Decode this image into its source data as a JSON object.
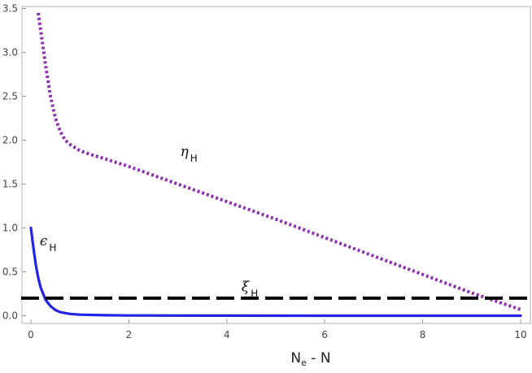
{
  "chart_data": {
    "type": "line",
    "xlabel": "Ne - N",
    "xlabel_main": "N",
    "xlabel_sub": "e",
    "xlabel_rest": " - N",
    "xlim": [
      0,
      10
    ],
    "ylim": [
      0,
      3.5
    ],
    "xticks": [
      0,
      2,
      4,
      6,
      8,
      10
    ],
    "yticks": [
      0.0,
      0.5,
      1.0,
      1.5,
      2.0,
      2.5,
      3.0,
      3.5
    ],
    "ytick_labels": [
      "0.0",
      "0.5",
      "1.0",
      "1.5",
      "2.0",
      "2.5",
      "3.0",
      "3.5"
    ],
    "xtick_labels": [
      "0",
      "2",
      "4",
      "6",
      "8",
      "10"
    ],
    "grid": false,
    "series": [
      {
        "name": "ηH",
        "label_main": "η",
        "label_sub": "H",
        "color": "#8e2fb0",
        "style": "dotted",
        "x": [
          0.15,
          0.2,
          0.3,
          0.4,
          0.5,
          0.6,
          0.7,
          0.8,
          1.0,
          1.2,
          1.5,
          2.0,
          3.0,
          4.0,
          5.0,
          6.0,
          7.0,
          8.0,
          9.0,
          10.0
        ],
        "y": [
          3.45,
          3.25,
          2.85,
          2.5,
          2.25,
          2.1,
          2.0,
          1.95,
          1.88,
          1.84,
          1.79,
          1.7,
          1.5,
          1.3,
          1.1,
          0.89,
          0.68,
          0.47,
          0.26,
          0.07
        ]
      },
      {
        "name": "ϵH",
        "label_main": "ϵ",
        "label_sub": "H",
        "color": "#2323e6",
        "style": "solid",
        "x": [
          0.0,
          0.05,
          0.1,
          0.15,
          0.2,
          0.3,
          0.4,
          0.5,
          0.6,
          0.8,
          1.0,
          1.5,
          2.0,
          4.0,
          6.0,
          8.0,
          10.0
        ],
        "y": [
          1.0,
          0.78,
          0.58,
          0.43,
          0.32,
          0.18,
          0.11,
          0.065,
          0.04,
          0.02,
          0.012,
          0.006,
          0.003,
          0.001,
          0.0,
          0.0,
          0.0
        ]
      },
      {
        "name": "ξH",
        "label_main": "ξ",
        "label_sub": "H",
        "color": "#000000",
        "style": "dashed",
        "x": [
          -0.2,
          10.2
        ],
        "y": [
          0.2,
          0.2
        ]
      }
    ],
    "annotations": [
      {
        "series": 0,
        "text_main": "η",
        "text_sub": "H",
        "x": 3.05,
        "y": 1.82
      },
      {
        "series": 1,
        "text_main": "ϵ",
        "text_sub": "H",
        "x": 0.18,
        "y": 0.8
      },
      {
        "series": 2,
        "text_main": "ξ",
        "text_sub": "H",
        "x": 4.3,
        "y": 0.28
      }
    ]
  }
}
